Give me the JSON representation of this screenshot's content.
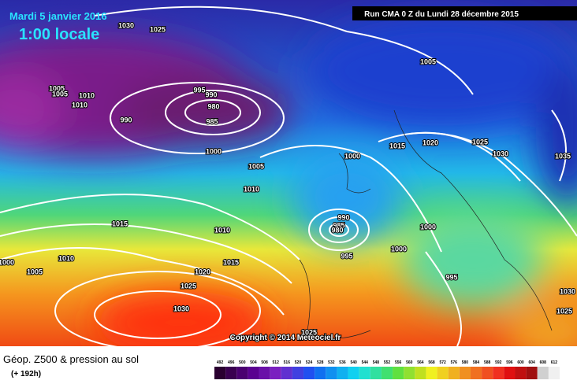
{
  "header": {
    "date": "Mardi 5 janvier 2016",
    "time": "1:00 locale",
    "run": "Run CMA 0 Z du Lundi 28 décembre 2015"
  },
  "copyright": "Copyright © 2014 Meteociel.fr",
  "footer": {
    "title": "Géop. Z500 & pression au sol",
    "subtitle": "(+ 192h)"
  },
  "legend": {
    "labels": [
      "492",
      "496",
      "500",
      "504",
      "508",
      "512",
      "516",
      "520",
      "524",
      "528",
      "532",
      "536",
      "540",
      "544",
      "548",
      "552",
      "556",
      "560",
      "564",
      "568",
      "572",
      "576",
      "580",
      "584",
      "588",
      "592",
      "596",
      "600",
      "604",
      "608",
      "612"
    ]
  },
  "isobar_labels": [
    "1030",
    "1025",
    "1005",
    "1005",
    "1005",
    "1010",
    "1010",
    "995",
    "990",
    "980",
    "985",
    "990",
    "1000",
    "1005",
    "1010",
    "1000",
    "1015",
    "1020",
    "1025",
    "1030",
    "1035",
    "1015",
    "1010",
    "990",
    "985",
    "980",
    "1000",
    "1000",
    "995",
    "1010",
    "1000",
    "1005",
    "1015",
    "1020",
    "1025",
    "1030",
    "995",
    "1030",
    "1025",
    "1025"
  ]
}
